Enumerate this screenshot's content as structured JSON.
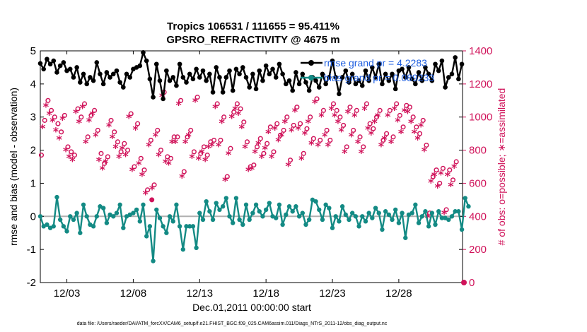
{
  "chart_data": {
    "type": "line",
    "title": "Tropics 106531 / 111655 = 95.411%",
    "subtitle": "GPSRO_REFRACTIVITY @ 4675 m",
    "xlabel": "Dec.01,2011 00:00:00 start",
    "ylabel": "rmse and bias (model - observation)",
    "ylabel_right": "# of obs: o=possible; ∗=assimilated",
    "footer": "data file: /Users/raeder/DAI/ATM_forcXX/CAM6_setup/f.e21.FHIST_BGC.f09_025.CAM6assim.011/Diags_NTrS_2011-12/obs_diag_output.nc",
    "xlim": [
      1,
      32.8
    ],
    "ylim": [
      -2,
      5
    ],
    "ylim_right": [
      0,
      1400
    ],
    "x_ticks": [
      3,
      8,
      13,
      18,
      23,
      28
    ],
    "x_tick_labels": [
      "12/03",
      "12/08",
      "12/13",
      "12/18",
      "12/23",
      "12/28"
    ],
    "y_ticks": [
      "-2",
      "-1",
      "0",
      "1",
      "2",
      "3",
      "4",
      "5"
    ],
    "y_ticks_right": [
      "0",
      "200",
      "400",
      "600",
      "800",
      "1000",
      "1200",
      "1400"
    ],
    "legend": [
      "rmse grand pr = 4.2283",
      "bias grand pr = 0.089233"
    ],
    "colors": {
      "rmse": "#000000",
      "bias": "#138a84",
      "obs": "#d0135a",
      "zero_line": "#b0b0b0",
      "legend_text": "#1f5fe0"
    },
    "series": [
      {
        "name": "rmse",
        "axis": "left",
        "x_start": 1.0,
        "x_step": 0.25,
        "values": [
          4.62,
          4.45,
          4.75,
          4.6,
          4.7,
          4.35,
          4.55,
          4.65,
          4.4,
          4.45,
          4.2,
          4.5,
          4.05,
          4.3,
          4.0,
          4.2,
          4.1,
          4.65,
          4.3,
          4.0,
          4.35,
          4.2,
          4.3,
          4.4,
          4.05,
          3.9,
          4.3,
          4.2,
          4.45,
          4.5,
          4.55,
          4.95,
          4.7,
          4.15,
          3.6,
          4.6,
          4.1,
          3.55,
          4.4,
          4.1,
          4.2,
          3.95,
          4.6,
          4.2,
          4.05,
          4.3,
          4.15,
          4.45,
          4.2,
          4.4,
          4.1,
          4.3,
          3.75,
          4.5,
          4.2,
          3.75,
          4.2,
          4.4,
          3.8,
          4.45,
          4.3,
          4.5,
          4.2,
          3.9,
          4.3,
          3.85,
          4.4,
          4.1,
          4.55,
          4.3,
          4.45,
          4.2,
          4.6,
          4.3,
          4.0,
          4.1,
          3.8,
          4.35,
          4.0,
          4.3,
          4.05,
          3.8,
          4.2,
          4.1,
          3.9,
          4.3,
          4.0,
          4.2,
          4.7,
          4.2,
          3.7,
          4.2,
          4.4,
          4.05,
          4.3,
          4.0,
          4.1,
          3.95,
          4.4,
          4.1,
          4.5,
          4.2,
          4.6,
          4.0,
          4.3,
          4.1,
          4.3,
          3.85,
          4.4,
          4.45,
          4.2,
          4.5,
          4.15,
          4.0,
          4.35,
          4.1,
          4.5,
          4.3,
          4.1,
          4.6,
          4.4,
          4.7,
          3.9,
          4.2,
          4.3,
          4.8,
          4.15,
          4.6
        ]
      },
      {
        "name": "bias",
        "axis": "left",
        "x_start": 1.0,
        "x_step": 0.25,
        "values": [
          0.0,
          -0.3,
          -0.25,
          -0.35,
          -0.3,
          0.58,
          -0.1,
          -0.3,
          -0.45,
          0.0,
          -0.1,
          0.1,
          -0.5,
          0.35,
          0.0,
          -0.25,
          -0.3,
          0.0,
          0.3,
          0.25,
          -0.2,
          0.05,
          0.0,
          0.1,
          0.35,
          -0.35,
          0.0,
          0.05,
          0.1,
          0.2,
          -0.15,
          0.35,
          -0.6,
          -0.3,
          -1.35,
          0.2,
          -0.05,
          -0.3,
          -0.5,
          0.0,
          -0.15,
          0.35,
          -0.3,
          -1.0,
          -0.3,
          -0.3,
          -0.3,
          -0.95,
          0.1,
          -0.1,
          0.45,
          0.15,
          -0.1,
          0.4,
          0.2,
          0.3,
          0.55,
          0.0,
          -0.2,
          0.55,
          -0.1,
          -0.25,
          0.35,
          -0.1,
          0.1,
          0.35,
          0.15,
          0.0,
          0.2,
          0.4,
          0.0,
          -0.05,
          0.35,
          -0.25,
          0.05,
          0.3,
          0.15,
          0.3,
          0.0,
          0.1,
          -0.25,
          -0.1,
          0.5,
          0.45,
          0.2,
          -0.1,
          0.35,
          0.25,
          -0.35,
          0.0,
          -0.15,
          0.3,
          0.05,
          -0.1,
          0.1,
          0.0,
          -0.3,
          0.0,
          -0.15,
          0.1,
          -0.05,
          0.25,
          0.1,
          -0.4,
          0.15,
          0.05,
          -0.1,
          0.2,
          -0.2,
          0.1,
          -0.65,
          0.05,
          0.1,
          0.35,
          -0.2,
          0.0,
          0.15,
          -0.3,
          0.1,
          -0.25,
          0.15,
          -0.05,
          -0.05,
          -0.1,
          0.0,
          0.15,
          0.15,
          -0.4,
          0.55,
          0.3
        ]
      },
      {
        "name": "possible",
        "axis": "right",
        "marker": "circle",
        "x_start": 1.0,
        "x_step": 0.25,
        "values": [
          770,
          980,
          1100,
          1040,
          1000,
          960,
          910,
          1010,
          820,
          790,
          770,
          1050,
          1000,
          1080,
          880,
          1010,
          1040,
          920,
          780,
          720,
          760,
          980,
          910,
          850,
          790,
          840,
          800,
          1020,
          700,
          960,
          750,
          680,
          560,
          860,
          590,
          920,
          800,
          1150,
          760,
          750,
          880,
          880,
          1100,
          670,
          880,
          920,
          790,
          1120,
          780,
          820,
          770,
          850,
          860,
          1080,
          860,
          1000,
          640,
          810,
          1030,
          1080,
          1050,
          970,
          850,
          700,
          710,
          820,
          870,
          780,
          840,
          940,
          790,
          960,
          890,
          920,
          1000,
          740,
          950,
          1060,
          960,
          780,
          930,
          1000,
          870,
          1110,
          860,
          1040,
          920,
          860,
          1080,
          1040,
          1000,
          950,
          820,
          1060,
          920,
          1040,
          880,
          820,
          1080,
          960,
          930,
          1000,
          1040,
          860,
          900,
          1040,
          880,
          1080,
          1010,
          940,
          1070,
          1060,
          1000,
          940,
          900,
          980,
          830,
          420,
          640,
          680,
          600,
          690,
          440,
          680,
          620,
          730
        ]
      },
      {
        "name": "assimilated",
        "axis": "right",
        "marker": "asterisk",
        "x_start": 1.0,
        "x_step": 0.25,
        "values": [
          740,
          940,
          1070,
          1020,
          980,
          920,
          870,
          990,
          800,
          760,
          740,
          1030,
          970,
          1060,
          850,
          980,
          1020,
          890,
          740,
          690,
          730,
          950,
          880,
          820,
          760,
          810,
          770,
          1000,
          680,
          930,
          720,
          650,
          540,
          830,
          570,
          890,
          770,
          1130,
          730,
          720,
          850,
          850,
          1080,
          640,
          850,
          890,
          760,
          1100,
          750,
          790,
          740,
          820,
          830,
          1060,
          830,
          970,
          620,
          780,
          1000,
          1050,
          1020,
          940,
          820,
          680,
          690,
          790,
          840,
          760,
          810,
          910,
          760,
          930,
          860,
          890,
          970,
          710,
          920,
          1040,
          930,
          750,
          900,
          970,
          840,
          1090,
          830,
          1010,
          890,
          830,
          1050,
          1010,
          970,
          920,
          790,
          1030,
          890,
          1010,
          850,
          790,
          1050,
          930,
          900,
          970,
          1010,
          830,
          870,
          1010,
          850,
          1050,
          980,
          910,
          1040,
          1030,
          970,
          910,
          870,
          950,
          800,
          400,
          610,
          650,
          580,
          660,
          420,
          650,
          590,
          700
        ]
      }
    ]
  }
}
